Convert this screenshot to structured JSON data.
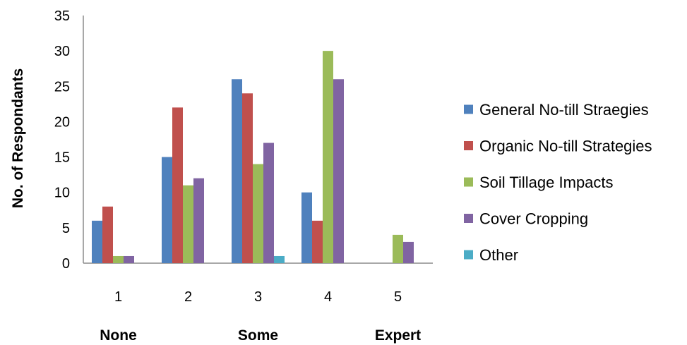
{
  "chart_data": {
    "type": "bar",
    "categories": [
      "1",
      "2",
      "3",
      "4",
      "5"
    ],
    "category_labels": [
      {
        "at": "1",
        "text": "None"
      },
      {
        "at": "3",
        "text": "Some"
      },
      {
        "at": "5",
        "text": "Expert"
      }
    ],
    "series": [
      {
        "name": "General No-till Straegies",
        "color": "#4F81BD",
        "values": [
          6,
          15,
          26,
          10,
          0
        ]
      },
      {
        "name": "Organic No-till Strategies",
        "color": "#C0504D",
        "values": [
          8,
          22,
          24,
          6,
          0
        ]
      },
      {
        "name": "Soil Tillage Impacts",
        "color": "#9BBB59",
        "values": [
          1,
          11,
          14,
          30,
          4
        ]
      },
      {
        "name": "Cover Cropping",
        "color": "#8064A2",
        "values": [
          1,
          12,
          17,
          26,
          3
        ]
      },
      {
        "name": "Other",
        "color": "#4BACC6",
        "values": [
          0,
          0,
          1,
          0,
          0
        ]
      }
    ],
    "ylabel": "No. of Respondants",
    "xlabel": "",
    "ylim": [
      0,
      35
    ],
    "yticks": [
      0,
      5,
      10,
      15,
      20,
      25,
      30,
      35
    ],
    "grid": false,
    "legend_position": "right"
  }
}
